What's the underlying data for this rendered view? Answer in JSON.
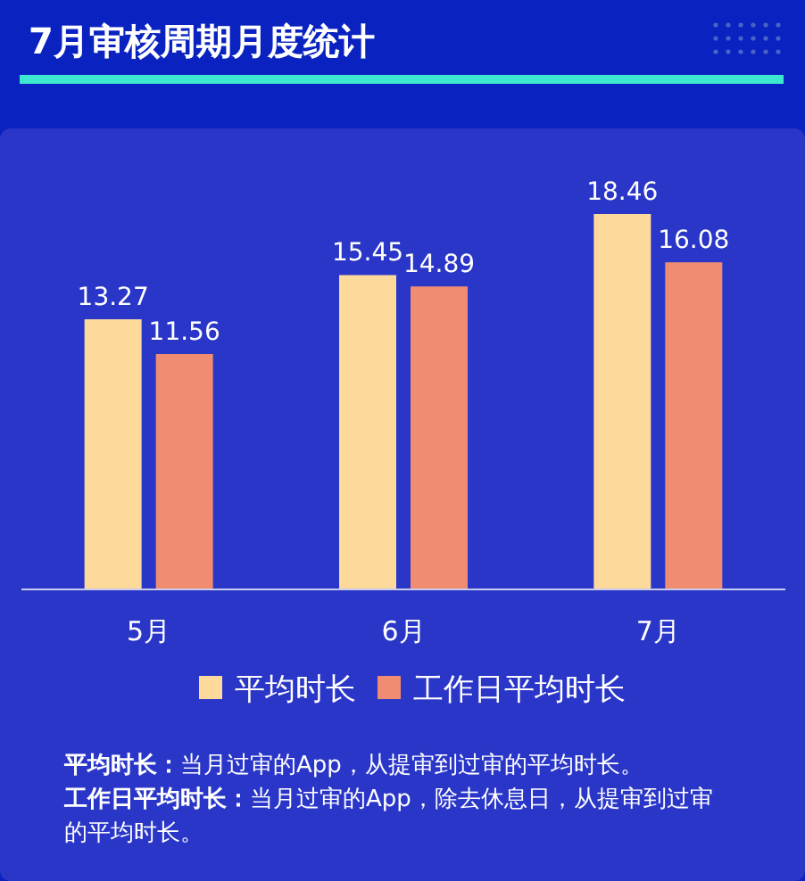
{
  "chart_data": {
    "type": "bar",
    "title": "7月审核周期月度统计",
    "categories": [
      "5月",
      "6月",
      "7月"
    ],
    "series": [
      {
        "name": "平均时长",
        "color": "#fdd99b",
        "values": [
          13.27,
          15.45,
          18.46
        ]
      },
      {
        "name": "工作日平均时长",
        "color": "#f08c72",
        "values": [
          11.56,
          14.89,
          16.08
        ]
      }
    ],
    "data_labels": true,
    "legend": "bottom",
    "annotations": [
      "平均时长：当月过审的App，从提审到过审的平均时长。",
      "工作日平均时长：当月过审的App，除去休息日，从提审到过审的平均时长。"
    ]
  }
}
